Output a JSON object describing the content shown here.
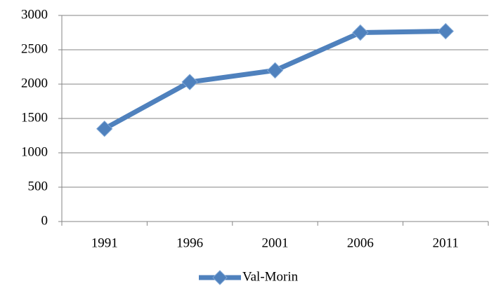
{
  "chart_data": {
    "type": "line",
    "categories": [
      "1991",
      "1996",
      "2001",
      "2006",
      "2011"
    ],
    "series": [
      {
        "name": "Val-Morin",
        "color": "#4f81bd",
        "values": [
          1350,
          2030,
          2200,
          2750,
          2770
        ]
      }
    ],
    "ylim": [
      0,
      3000
    ],
    "yticks": [
      0,
      500,
      1000,
      1500,
      2000,
      2500,
      3000
    ],
    "grid": true,
    "legend": "bottom"
  }
}
